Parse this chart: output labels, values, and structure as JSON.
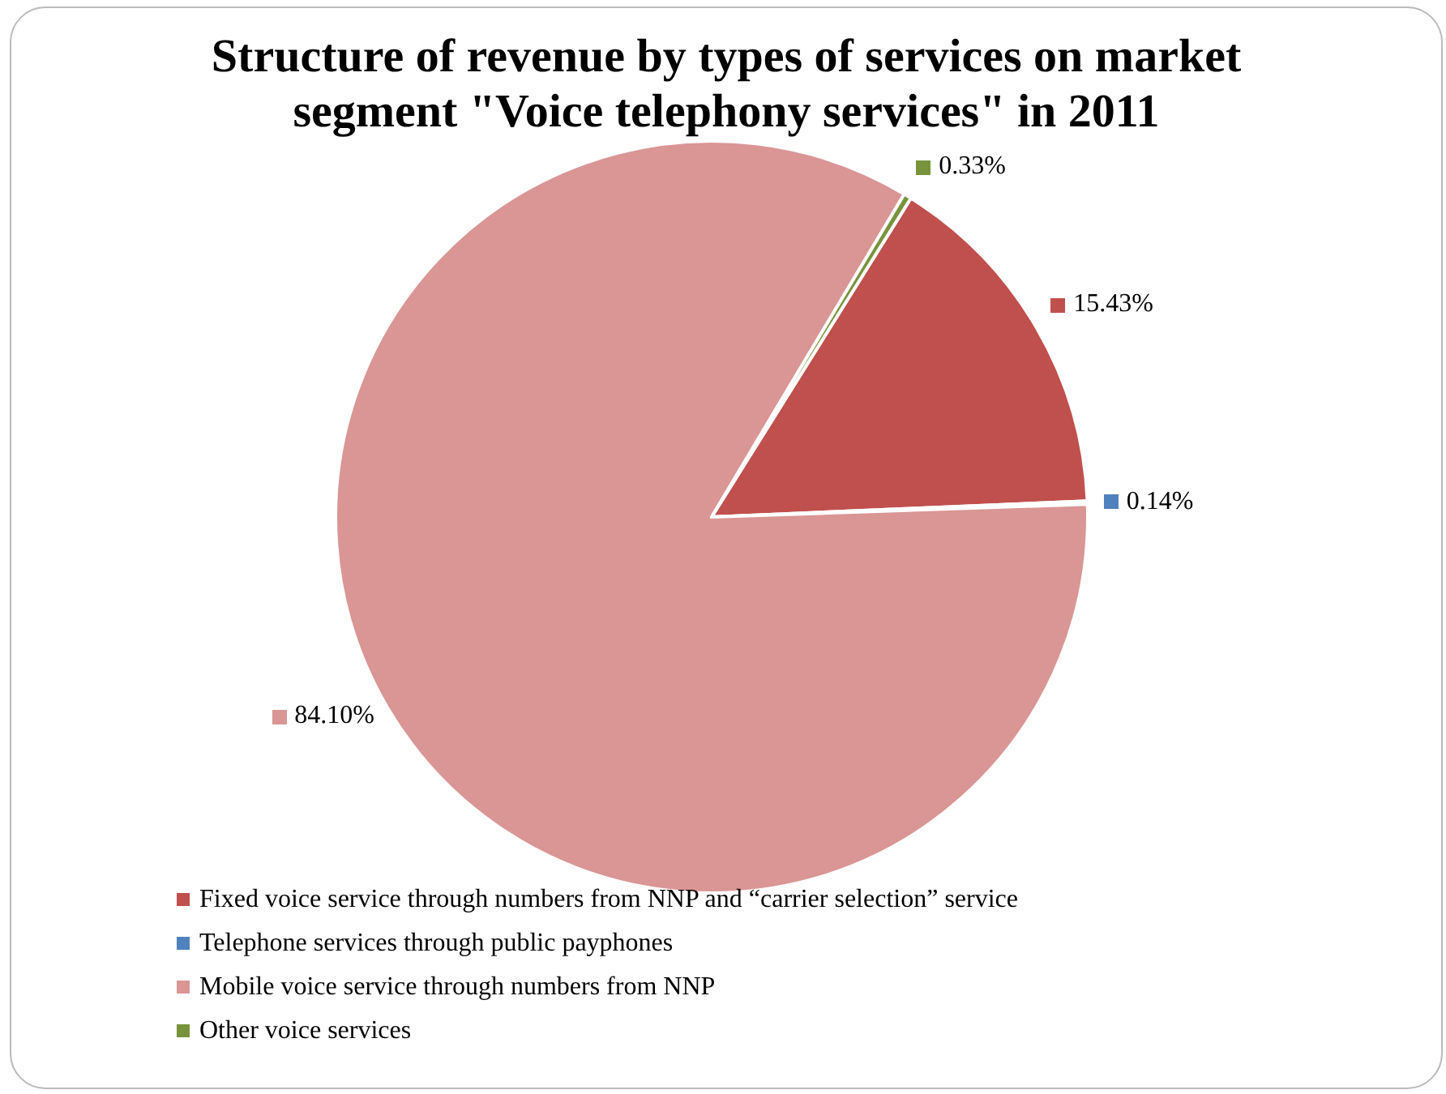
{
  "chart_data": {
    "type": "pie",
    "title": "Structure of revenue by types of services on market\nsegment \"Voice telephony services\" in 2011",
    "categories": [
      "Fixed voice service through numbers from NNP and “carrier selection” service",
      "Telephone services through public payphones",
      "Mobile voice service through numbers from NNP",
      "Other voice services"
    ],
    "values": [
      15.43,
      0.14,
      84.1,
      0.33
    ],
    "colors": [
      "#c0504d",
      "#4f81bd",
      "#d99694",
      "#77933c"
    ],
    "value_labels": [
      "15.43%",
      "0.14%",
      "84.10%",
      "0.33%"
    ],
    "legend": "bottom"
  }
}
